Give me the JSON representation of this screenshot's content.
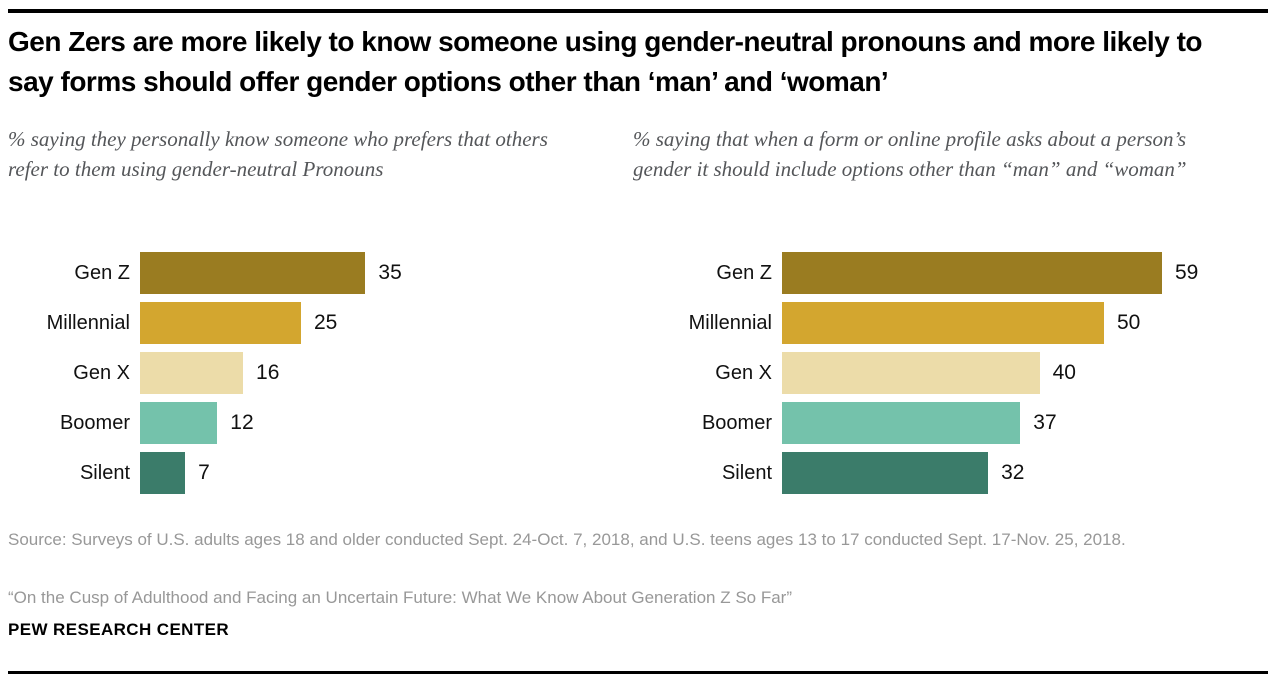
{
  "header": {
    "title": "Gen Zers are more likely to know someone using gender-neutral pronouns and more likely to say forms should offer gender options other than ‘man’ and ‘woman’"
  },
  "chart_data": [
    {
      "type": "bar",
      "orientation": "horizontal",
      "title": "% saying they personally know someone who prefers that others refer to them using gender-neutral Pronouns",
      "categories": [
        "Gen Z",
        "Millennial",
        "Gen X",
        "Boomer",
        "Silent"
      ],
      "values": [
        35,
        25,
        16,
        12,
        7
      ],
      "bar_colors": [
        "#9A7C21",
        "#D3A62F",
        "#ECDCA9",
        "#74C2AB",
        "#3B7C6A"
      ],
      "xlim": [
        0,
        62
      ],
      "data_labels": true,
      "legend": "none",
      "grid": false
    },
    {
      "type": "bar",
      "orientation": "horizontal",
      "title": "% saying that when a form or online profile asks about a person’s gender it should include options other than “man” and “woman”",
      "categories": [
        "Gen Z",
        "Millennial",
        "Gen X",
        "Boomer",
        "Silent"
      ],
      "values": [
        59,
        50,
        40,
        37,
        32
      ],
      "bar_colors": [
        "#9A7C21",
        "#D3A62F",
        "#ECDCA9",
        "#74C2AB",
        "#3B7C6A"
      ],
      "xlim": [
        0,
        62
      ],
      "data_labels": true,
      "legend": "none",
      "grid": false
    }
  ],
  "footer": {
    "source": "Source: Surveys of U.S. adults ages 18 and older conducted Sept. 24-Oct. 7, 2018, and U.S. teens ages 13 to 17 conducted Sept. 17-Nov. 25, 2018.",
    "report": "“On the Cusp of Adulthood and Facing an Uncertain Future: What We Know About Generation Z So Far”",
    "brand": "PEW RESEARCH CENTER"
  }
}
